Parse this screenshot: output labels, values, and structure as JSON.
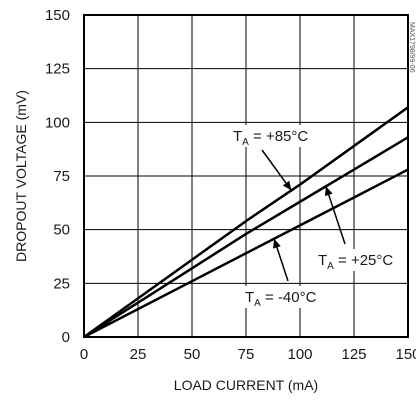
{
  "chart_data": {
    "type": "line",
    "title": "",
    "xlabel": "LOAD CURRENT (mA)",
    "ylabel": "DROPOUT VOLTAGE (mV)",
    "xlim": [
      0,
      150
    ],
    "ylim": [
      0,
      150
    ],
    "x_ticks": [
      0,
      25,
      50,
      75,
      100,
      125,
      150
    ],
    "y_ticks": [
      0,
      25,
      50,
      75,
      100,
      125,
      150
    ],
    "grid": true,
    "legend": "none",
    "side_id": "MAX1798/99-06",
    "series": [
      {
        "label_main": "T",
        "label_sub": "A",
        "label_rest": " = +85°C",
        "x": [
          0,
          25,
          50,
          75,
          100,
          125,
          150
        ],
        "y": [
          0,
          18,
          36,
          54,
          71,
          89,
          107
        ]
      },
      {
        "label_main": "T",
        "label_sub": "A",
        "label_rest": " = +25°C",
        "x": [
          0,
          25,
          50,
          75,
          100,
          125,
          150
        ],
        "y": [
          0,
          16,
          32,
          48,
          63,
          78,
          93
        ]
      },
      {
        "label_main": "T",
        "label_sub": "A",
        "label_rest": " = -40°C",
        "x": [
          0,
          25,
          50,
          75,
          100,
          125,
          150
        ],
        "y": [
          0,
          13,
          26,
          39,
          52,
          65,
          78
        ]
      }
    ]
  }
}
